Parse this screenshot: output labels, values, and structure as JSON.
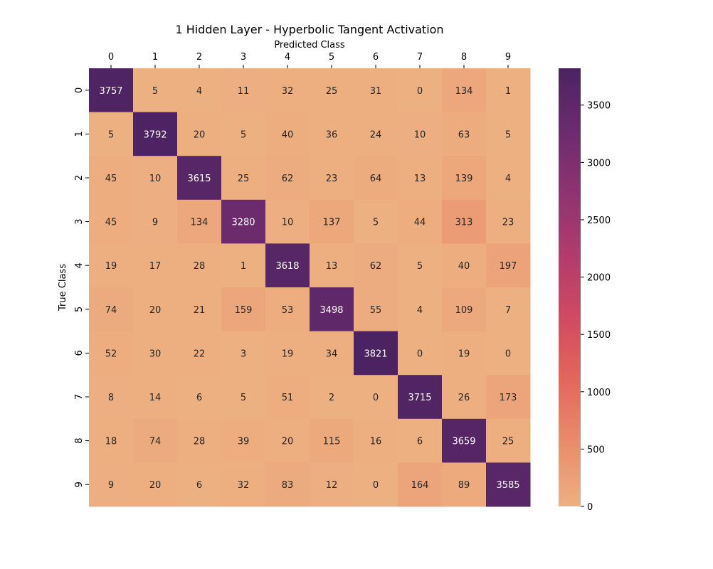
{
  "chart_data": {
    "type": "heatmap",
    "title": "1 Hidden Layer - Hyperbolic Tangent Activation",
    "xlabel": "Predicted Class",
    "ylabel": "True Class",
    "x_categories": [
      "0",
      "1",
      "2",
      "3",
      "4",
      "5",
      "6",
      "7",
      "8",
      "9"
    ],
    "y_categories": [
      "0",
      "1",
      "2",
      "3",
      "4",
      "5",
      "6",
      "7",
      "8",
      "9"
    ],
    "x_axis_position": "top",
    "values": [
      [
        3757,
        5,
        4,
        11,
        32,
        25,
        31,
        0,
        134,
        1
      ],
      [
        5,
        3792,
        20,
        5,
        40,
        36,
        24,
        10,
        63,
        5
      ],
      [
        45,
        10,
        3615,
        25,
        62,
        23,
        64,
        13,
        139,
        4
      ],
      [
        45,
        9,
        134,
        3280,
        10,
        137,
        5,
        44,
        313,
        23
      ],
      [
        19,
        17,
        28,
        1,
        3618,
        13,
        62,
        5,
        40,
        197
      ],
      [
        74,
        20,
        21,
        159,
        53,
        3498,
        55,
        4,
        109,
        7
      ],
      [
        52,
        30,
        22,
        3,
        19,
        34,
        3821,
        0,
        19,
        0
      ],
      [
        8,
        14,
        6,
        5,
        51,
        2,
        0,
        3715,
        26,
        173
      ],
      [
        18,
        74,
        28,
        39,
        20,
        115,
        16,
        6,
        3659,
        25
      ],
      [
        9,
        20,
        6,
        32,
        83,
        12,
        0,
        164,
        89,
        3585
      ]
    ],
    "colorbar": {
      "vmin": 0,
      "vmax": 3821,
      "ticks": [
        0,
        500,
        1000,
        1500,
        2000,
        2500,
        3000,
        3500
      ]
    },
    "colormap": "flare",
    "colormap_stops": [
      "#edb081",
      "#e98d6b",
      "#e3685c",
      "#d14a61",
      "#b13c6c",
      "#8f3371",
      "#6c2b6d",
      "#4b2362"
    ],
    "grid": false,
    "legend": "colorbar-right"
  }
}
